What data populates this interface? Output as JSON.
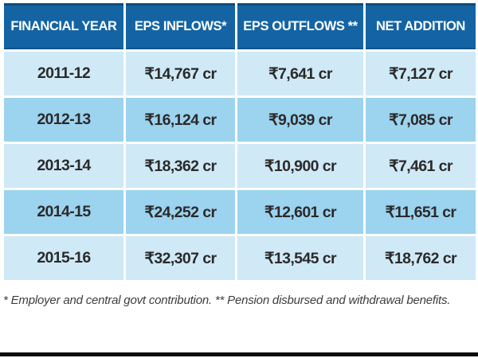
{
  "chart_data": {
    "type": "table",
    "columns": [
      "FINANCIAL YEAR",
      "EPS INFLOWS*",
      "EPS OUTFLOWS **",
      "NET ADDITION"
    ],
    "rows": [
      {
        "cells": [
          "2011-12",
          "₹14,767 cr",
          "₹7,641 cr",
          "₹7,127 cr"
        ]
      },
      {
        "cells": [
          "2012-13",
          "₹16,124 cr",
          "₹9,039 cr",
          "₹7,085 cr"
        ]
      },
      {
        "cells": [
          "2013-14",
          "₹18,362 cr",
          "₹10,900 cr",
          "₹7,461 cr"
        ]
      },
      {
        "cells": [
          "2014-15",
          "₹24,252 cr",
          "₹12,601 cr",
          "₹11,651 cr"
        ]
      },
      {
        "cells": [
          "2015-16",
          "₹32,307 cr",
          "₹13,545 cr",
          "₹18,762 cr"
        ]
      }
    ],
    "categories": [
      "2011-12",
      "2012-13",
      "2013-14",
      "2014-15",
      "2015-16"
    ],
    "series": [
      {
        "name": "EPS INFLOWS (₹ cr)",
        "values": [
          14767,
          16124,
          18362,
          24252,
          32307
        ]
      },
      {
        "name": "EPS OUTFLOWS (₹ cr)",
        "values": [
          7641,
          9039,
          10900,
          12601,
          13545
        ]
      },
      {
        "name": "NET ADDITION (₹ cr)",
        "values": [
          7127,
          7085,
          7461,
          11651,
          18762
        ]
      }
    ],
    "footnote": "* Employer and central govt contribution. ** Pension disbursed and withdrawal benefits."
  },
  "colors": {
    "header_bg": "#1464a4",
    "row_light": "#cfe9f7",
    "row_dark": "#9cd3ef",
    "header_text": "#ffffff",
    "cell_text": "#2b2a29",
    "footnote_text": "#3d3d3d",
    "bottom_bar": "#0a0a0a"
  }
}
